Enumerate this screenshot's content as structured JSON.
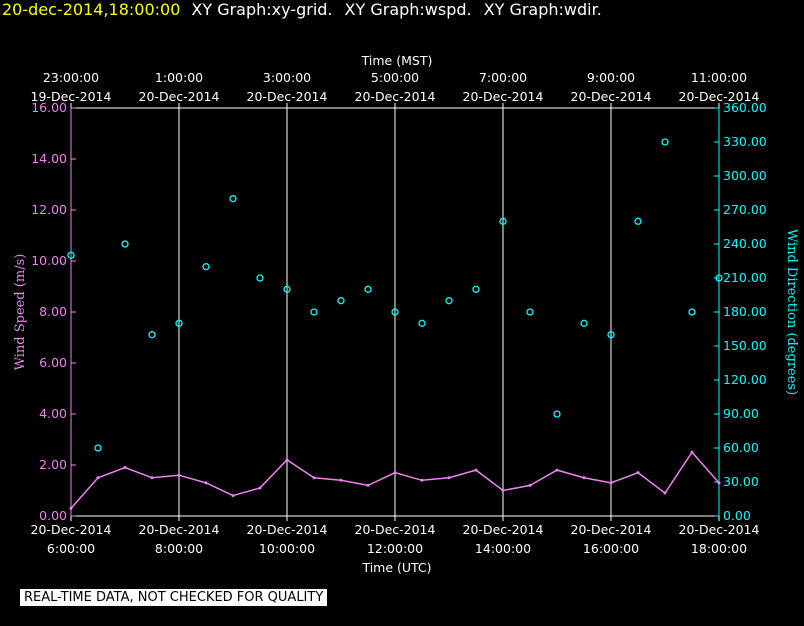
{
  "header": {
    "timestamp": "20-dec-2014,18:00:00",
    "graphs": [
      "XY Graph:xy-grid.",
      "XY Graph:wspd.",
      "XY Graph:wdir."
    ]
  },
  "footer": {
    "qc_notice": "REAL-TIME DATA, NOT CHECKED FOR QUALITY"
  },
  "chart_data": {
    "type": "scatter",
    "colors": {
      "background": "#000000",
      "grid": "#ffffff",
      "wind_speed": "#ee82ee",
      "wind_direction": "#00ffff",
      "timestamp": "#ffff00"
    },
    "top_axis": {
      "label": "Time (MST)",
      "ticks": [
        {
          "time": "23:00:00",
          "date": "19-Dec-2014"
        },
        {
          "time": "1:00:00",
          "date": "20-Dec-2014"
        },
        {
          "time": "3:00:00",
          "date": "20-Dec-2014"
        },
        {
          "time": "5:00:00",
          "date": "20-Dec-2014"
        },
        {
          "time": "7:00:00",
          "date": "20-Dec-2014"
        },
        {
          "time": "9:00:00",
          "date": "20-Dec-2014"
        },
        {
          "time": "11:00:00",
          "date": "20-Dec-2014"
        }
      ]
    },
    "bottom_axis": {
      "label": "Time (UTC)",
      "ticks": [
        {
          "date": "20-Dec-2014",
          "time": "6:00:00"
        },
        {
          "date": "20-Dec-2014",
          "time": "8:00:00"
        },
        {
          "date": "20-Dec-2014",
          "time": "10:00:00"
        },
        {
          "date": "20-Dec-2014",
          "time": "12:00:00"
        },
        {
          "date": "20-Dec-2014",
          "time": "14:00:00"
        },
        {
          "date": "20-Dec-2014",
          "time": "16:00:00"
        },
        {
          "date": "20-Dec-2014",
          "time": "18:00:00"
        }
      ]
    },
    "xlim_hours_utc": [
      6,
      18
    ],
    "left_axis": {
      "label": "Wind Speed (m/s)",
      "ylim": [
        0,
        16
      ],
      "ticks": [
        "0.00",
        "2.00",
        "4.00",
        "6.00",
        "8.00",
        "10.00",
        "12.00",
        "14.00",
        "16.00"
      ]
    },
    "right_axis": {
      "label": "Wind Direction (degrees)",
      "ylim": [
        0,
        360
      ],
      "ticks": [
        "0.00",
        "30.00",
        "60.00",
        "90.00",
        "120.00",
        "150.00",
        "180.00",
        "210.00",
        "240.00",
        "270.00",
        "300.00",
        "330.00",
        "360.00"
      ]
    },
    "grid": "vertical lines at 2-hour UTC ticks",
    "series": [
      {
        "kind": "line",
        "axis": "left",
        "hour_utc": [
          6.0,
          6.5,
          7.0,
          7.5,
          8.0,
          8.5,
          9.0,
          9.5,
          10.0,
          10.5,
          11.0,
          11.5,
          12.0,
          12.5,
          13.0,
          13.5,
          14.0,
          14.5,
          15.0,
          15.5,
          16.0,
          16.5,
          17.0,
          17.5,
          18.0
        ],
        "values": [
          0.3,
          1.5,
          1.9,
          1.5,
          1.6,
          1.3,
          0.8,
          1.1,
          2.2,
          1.5,
          1.4,
          1.2,
          1.7,
          1.4,
          1.5,
          1.8,
          1.0,
          1.2,
          1.8,
          1.5,
          1.3,
          1.7,
          0.9,
          2.5,
          1.3
        ]
      },
      {
        "kind": "points",
        "axis": "right",
        "hour_utc": [
          6.0,
          6.5,
          7.0,
          7.5,
          8.0,
          8.5,
          9.0,
          9.5,
          10.0,
          10.5,
          11.0,
          11.5,
          12.0,
          12.5,
          13.0,
          13.5,
          14.0,
          14.5,
          15.0,
          15.5,
          16.0,
          16.5,
          17.0,
          17.5,
          18.0
        ],
        "values": [
          230,
          60,
          240,
          160,
          170,
          220,
          280,
          210,
          200,
          180,
          190,
          200,
          180,
          170,
          190,
          200,
          260,
          180,
          90,
          170,
          160,
          260,
          330,
          180,
          210
        ]
      }
    ]
  }
}
